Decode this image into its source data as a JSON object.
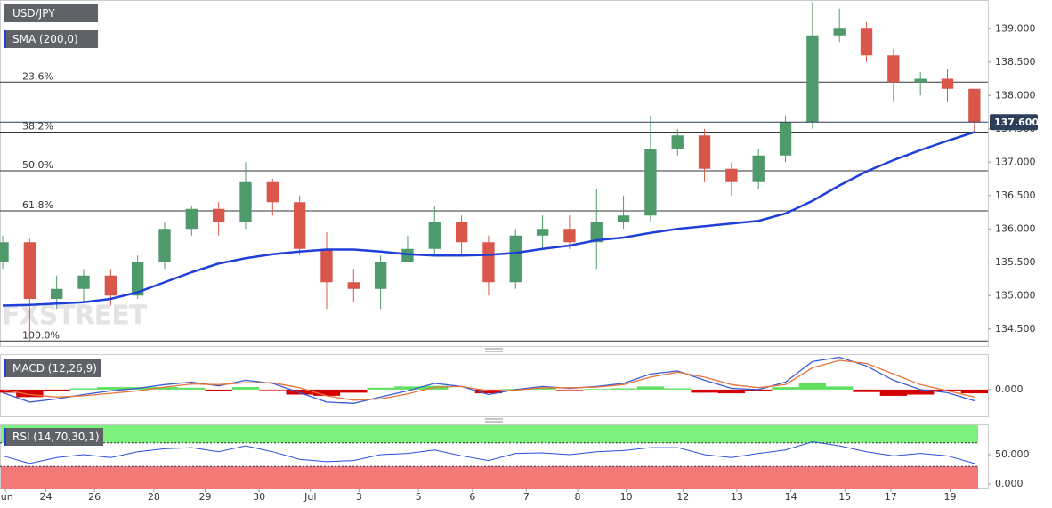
{
  "chart_data": [
    {
      "type": "candlestick",
      "title": "USD/JPY",
      "watermark": "FXSTREET",
      "x": [
        0,
        1,
        2,
        3,
        4,
        5,
        6,
        7,
        8,
        9,
        10,
        11,
        12,
        13,
        14,
        15,
        16,
        17,
        18,
        19,
        20,
        21,
        22,
        23,
        24,
        25,
        26,
        27,
        28,
        29,
        30,
        31,
        32,
        33,
        34,
        35,
        36
      ],
      "open": [
        135.5,
        135.8,
        134.95,
        135.1,
        135.3,
        135.0,
        135.5,
        136.0,
        136.3,
        136.1,
        136.7,
        136.4,
        135.7,
        135.2,
        135.1,
        135.5,
        135.7,
        136.1,
        135.8,
        135.2,
        135.9,
        136.0,
        135.8,
        136.1,
        136.2,
        137.2,
        137.4,
        136.9,
        136.7,
        137.1,
        137.6,
        138.9,
        139.0,
        138.6,
        138.2,
        138.25,
        138.1
      ],
      "high": [
        135.9,
        135.85,
        135.3,
        135.4,
        135.4,
        135.6,
        136.1,
        136.35,
        136.4,
        137.0,
        136.75,
        136.5,
        135.95,
        135.4,
        135.6,
        135.9,
        136.35,
        136.2,
        135.9,
        136.0,
        136.2,
        136.2,
        136.6,
        136.5,
        137.7,
        137.5,
        137.5,
        137.0,
        137.2,
        137.7,
        139.4,
        139.3,
        139.1,
        138.7,
        138.35,
        138.4,
        138.1
      ],
      "low": [
        135.4,
        134.32,
        134.8,
        134.9,
        134.85,
        134.95,
        135.4,
        135.9,
        135.9,
        136.0,
        136.2,
        135.6,
        134.8,
        134.9,
        134.8,
        135.5,
        135.6,
        135.6,
        135.0,
        135.1,
        135.7,
        135.7,
        135.4,
        136.0,
        136.1,
        137.1,
        136.7,
        136.5,
        136.6,
        137.0,
        137.5,
        138.8,
        138.5,
        137.9,
        138.0,
        137.9,
        137.45
      ],
      "close": [
        135.8,
        134.95,
        135.1,
        135.3,
        135.0,
        135.5,
        136.0,
        136.3,
        136.1,
        136.7,
        136.4,
        135.7,
        135.2,
        135.1,
        135.5,
        135.7,
        136.1,
        135.8,
        135.2,
        135.9,
        136.0,
        135.8,
        136.1,
        136.2,
        137.2,
        137.4,
        136.9,
        136.7,
        137.1,
        137.6,
        138.9,
        139.0,
        138.6,
        138.2,
        138.25,
        138.1,
        137.6
      ],
      "up_color": "#4f9a6a",
      "down_color": "#d9574a",
      "series": [
        {
          "name": "SMA (200,0)",
          "color": "#1f3fd8",
          "values": [
            134.85,
            134.86,
            134.88,
            134.9,
            134.95,
            135.05,
            135.2,
            135.35,
            135.48,
            135.56,
            135.62,
            135.66,
            135.69,
            135.69,
            135.66,
            135.62,
            135.6,
            135.6,
            135.61,
            135.64,
            135.7,
            135.75,
            135.83,
            135.87,
            135.94,
            136.0,
            136.04,
            136.08,
            136.12,
            136.23,
            136.42,
            136.65,
            136.86,
            137.03,
            137.18,
            137.32,
            137.45
          ]
        }
      ],
      "xlim": [
        -0.1,
        36.5
      ],
      "ylim": [
        134.23,
        139.43
      ],
      "yticks": [
        {
          "value": 134.5,
          "label": "134.500"
        },
        {
          "value": 135.0,
          "label": "135.000"
        },
        {
          "value": 135.5,
          "label": "135.500"
        },
        {
          "value": 136.0,
          "label": "136.000"
        },
        {
          "value": 136.5,
          "label": "136.500"
        },
        {
          "value": 137.0,
          "label": "137.000"
        },
        {
          "value": 137.5,
          "label": "137.500"
        },
        {
          "value": 138.0,
          "label": "138.000"
        },
        {
          "value": 138.5,
          "label": "138.500"
        },
        {
          "value": 139.0,
          "label": "139.000"
        }
      ],
      "fib_levels": [
        {
          "value": 138.2,
          "label": "23.6%"
        },
        {
          "value": 137.45,
          "label": "38.2%"
        },
        {
          "value": 136.87,
          "label": "50.0%"
        },
        {
          "value": 136.27,
          "label": "61.8%"
        },
        {
          "value": 134.32,
          "label": "100.0%"
        }
      ],
      "last_price": {
        "value": 137.6,
        "label": "137.600"
      }
    },
    {
      "type": "macd",
      "title": "MACD (12,26,9)",
      "x": [
        0,
        1,
        2,
        3,
        4,
        5,
        6,
        7,
        8,
        9,
        10,
        11,
        12,
        13,
        14,
        15,
        16,
        17,
        18,
        19,
        20,
        21,
        22,
        23,
        24,
        25,
        26,
        27,
        28,
        29,
        30,
        31,
        32,
        33,
        34,
        35,
        36
      ],
      "series": [
        {
          "color": "#3b5bd6",
          "values": [
            -0.05,
            -0.2,
            -0.15,
            -0.08,
            -0.02,
            0.02,
            0.08,
            0.12,
            0.06,
            0.15,
            0.1,
            -0.05,
            -0.2,
            -0.22,
            -0.12,
            -0.02,
            0.1,
            0.05,
            -0.08,
            0.0,
            0.05,
            0.02,
            0.05,
            0.1,
            0.25,
            0.3,
            0.15,
            0.02,
            0.0,
            0.12,
            0.45,
            0.52,
            0.38,
            0.15,
            0.0,
            -0.05,
            -0.18
          ]
        },
        {
          "color": "#e8743b",
          "values": [
            0.0,
            -0.08,
            -0.12,
            -0.1,
            -0.06,
            -0.02,
            0.04,
            0.09,
            0.08,
            0.11,
            0.11,
            0.03,
            -0.1,
            -0.17,
            -0.15,
            -0.07,
            0.04,
            0.05,
            -0.02,
            -0.01,
            0.03,
            0.03,
            0.04,
            0.08,
            0.2,
            0.28,
            0.2,
            0.08,
            0.03,
            0.08,
            0.35,
            0.47,
            0.42,
            0.25,
            0.08,
            -0.02,
            -0.12
          ]
        }
      ],
      "histogram": {
        "positive_color": "#5ee05e",
        "negative_color": "#d40000",
        "values": [
          -0.05,
          -0.12,
          -0.03,
          0.02,
          0.04,
          0.04,
          0.04,
          0.03,
          -0.02,
          0.04,
          -0.01,
          -0.08,
          -0.1,
          -0.05,
          0.03,
          0.05,
          0.06,
          0.0,
          -0.06,
          0.01,
          0.02,
          -0.01,
          0.01,
          0.02,
          0.05,
          0.02,
          -0.05,
          -0.06,
          -0.03,
          0.04,
          0.1,
          0.05,
          -0.04,
          -0.1,
          -0.08,
          -0.03,
          -0.06
        ]
      },
      "xlim": [
        -0.1,
        36.5
      ],
      "ylim": [
        -0.43,
        0.57
      ],
      "yticks": [
        {
          "value": 0,
          "label": "0.000"
        }
      ]
    },
    {
      "type": "rsi",
      "title": "RSI (14,70,30,1)",
      "x": [
        0,
        1,
        2,
        3,
        4,
        5,
        6,
        7,
        8,
        9,
        10,
        11,
        12,
        13,
        14,
        15,
        16,
        17,
        18,
        19,
        20,
        21,
        22,
        23,
        24,
        25,
        26,
        27,
        28,
        29,
        30,
        31,
        32,
        33,
        34,
        35,
        36
      ],
      "series": [
        {
          "color": "#2b4fd6",
          "values": [
            48,
            35,
            45,
            50,
            45,
            55,
            60,
            62,
            55,
            65,
            55,
            42,
            38,
            40,
            50,
            52,
            58,
            48,
            40,
            52,
            53,
            50,
            55,
            57,
            62,
            62,
            50,
            45,
            52,
            58,
            72,
            65,
            55,
            48,
            52,
            48,
            35
          ]
        }
      ],
      "overbought": 70,
      "oversold": 30,
      "overbought_color": "#7ef07e",
      "oversold_color": "#f47a7a",
      "xlim": [
        -0.1,
        36.5
      ],
      "ylim": [
        0,
        100
      ],
      "yticks": [
        {
          "value": 0,
          "label": "0.000"
        },
        {
          "value": 50,
          "label": "50.000"
        }
      ],
      "xticks": [
        {
          "value": 0.1,
          "label": "Jun"
        },
        {
          "value": 1.6,
          "label": "24"
        },
        {
          "value": 3.4,
          "label": "26"
        },
        {
          "value": 5.6,
          "label": "28"
        },
        {
          "value": 7.5,
          "label": "29"
        },
        {
          "value": 9.5,
          "label": "30"
        },
        {
          "value": 11.4,
          "label": "Jul"
        },
        {
          "value": 13.2,
          "label": "3"
        },
        {
          "value": 15.4,
          "label": "5"
        },
        {
          "value": 17.4,
          "label": "6"
        },
        {
          "value": 19.4,
          "label": "7"
        },
        {
          "value": 21.3,
          "label": "8"
        },
        {
          "value": 23.1,
          "label": "10"
        },
        {
          "value": 25.2,
          "label": "12"
        },
        {
          "value": 27.2,
          "label": "13"
        },
        {
          "value": 29.2,
          "label": "14"
        },
        {
          "value": 31.2,
          "label": "15"
        },
        {
          "value": 32.9,
          "label": "17"
        },
        {
          "value": 35.1,
          "label": "19"
        }
      ]
    }
  ]
}
